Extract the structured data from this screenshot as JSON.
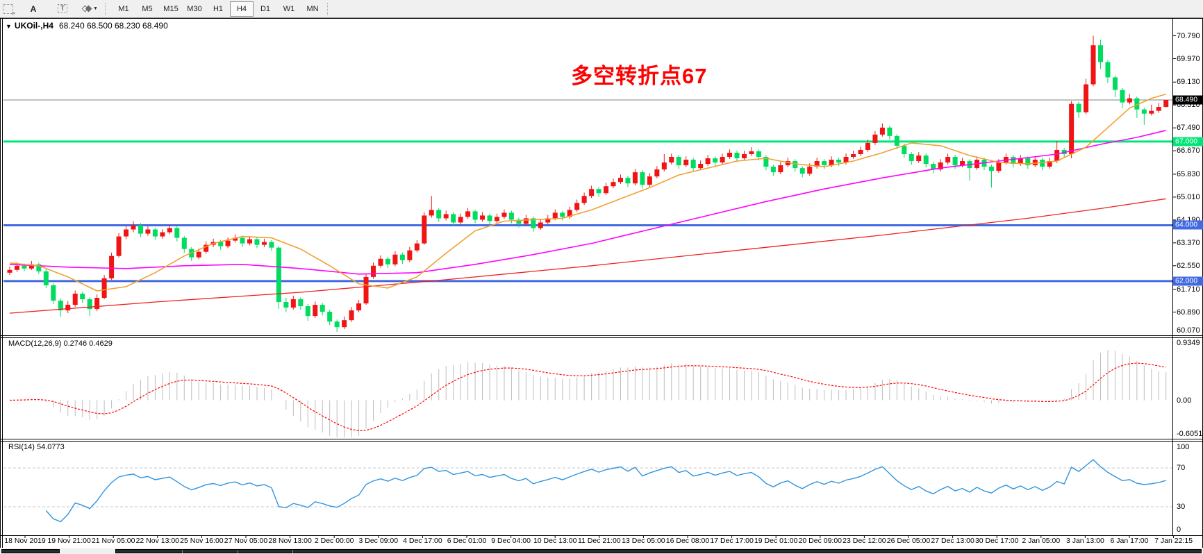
{
  "toolbar": {
    "frame_tool_label": "F",
    "tool_a": "A",
    "tool_t": "T",
    "timeframes": [
      "M1",
      "M5",
      "M15",
      "M30",
      "H1",
      "H4",
      "D1",
      "W1",
      "MN"
    ],
    "active_timeframe": "H4"
  },
  "chart": {
    "symbol_period": "UKOil-,H4",
    "ohlc_text": "68.240 68.500 68.230 68.490",
    "annotation": {
      "text": "多空转折点67",
      "color": "#ff0000"
    },
    "current_price": 68.49,
    "price_axis_ticks": [
      "70.790",
      "69.970",
      "69.130",
      "68.310",
      "67.490",
      "66.670",
      "65.830",
      "65.010",
      "64.190",
      "63.370",
      "62.550",
      "61.710",
      "60.890",
      "60.070"
    ],
    "badges": [
      {
        "text": "68.490",
        "price": 68.49,
        "bg": "#000000",
        "fg": "#ffffff"
      },
      {
        "text": "67.000",
        "price": 67.0,
        "bg": "#00e676",
        "fg": "#ffffff"
      },
      {
        "text": "64.000",
        "price": 64.0,
        "bg": "#4169e1",
        "fg": "#ffffff"
      },
      {
        "text": "62.000",
        "price": 62.0,
        "bg": "#4169e1",
        "fg": "#ffffff"
      }
    ],
    "level_lines": [
      {
        "price": 68.49,
        "color": "#808080",
        "width": 1
      },
      {
        "price": 67.0,
        "color": "#00e676",
        "width": 3
      },
      {
        "price": 64.0,
        "color": "#4169e1",
        "width": 3
      },
      {
        "price": 62.0,
        "color": "#4169e1",
        "width": 3
      }
    ]
  },
  "macd": {
    "label": "MACD(12,26,9)",
    "values": "0.2746 0.4629",
    "params": {
      "fast": 12,
      "slow": 26,
      "signal": 9
    },
    "axis_ticks": [
      "0.9349",
      "0.00",
      "-0.6051"
    ],
    "ylim": [
      -0.6051,
      0.9349
    ]
  },
  "rsi": {
    "label": "RSI(14)",
    "value": "54.0773",
    "period": 14,
    "axis_ticks": [
      "100",
      "70",
      "30",
      "0"
    ],
    "dashed_levels": [
      70,
      30
    ]
  },
  "time_axis": [
    "18 Nov 2019",
    "19 Nov 21:00",
    "21 Nov 05:00",
    "22 Nov 13:00",
    "25 Nov 16:00",
    "27 Nov 05:00",
    "28 Nov 13:00",
    "2 Dec 00:00",
    "3 Dec 09:00",
    "4 Dec 17:00",
    "6 Dec 01:00",
    "9 Dec 04:00",
    "10 Dec 13:00",
    "11 Dec 21:00",
    "13 Dec 05:00",
    "16 Dec 08:00",
    "17 Dec 17:00",
    "19 Dec 01:00",
    "20 Dec 09:00",
    "23 Dec 12:00",
    "26 Dec 05:00",
    "27 Dec 13:00",
    "30 Dec 17:00",
    "2 Jan 05:00",
    "3 Jan 13:00",
    "6 Jan 17:00",
    "7 Jan 22:15"
  ],
  "chart_data": {
    "type": "candlestick",
    "symbol": "UKOil-",
    "timeframe": "H4",
    "title": "UKOil-,H4 68.240 68.500 68.230 68.490",
    "ylim": [
      60.06,
      71.37
    ],
    "colors": {
      "up": "#f01414",
      "down": "#00dc5f",
      "ma_orange": "#f0a030",
      "ma_magenta": "#ff00ff",
      "ma_red": "#f02020",
      "macd_hist": "#bdbdbd",
      "macd_signal": "#ff0000",
      "rsi_line": "#2f94e0",
      "rsi_level": "#c8c8c8",
      "price_line": "#808080",
      "annotation": "#ff0000"
    },
    "candles": [
      [
        62.3,
        62.52,
        62.22,
        62.4
      ],
      [
        62.4,
        62.68,
        62.33,
        62.55
      ],
      [
        62.55,
        62.63,
        62.35,
        62.45
      ],
      [
        62.45,
        62.72,
        62.4,
        62.6
      ],
      [
        62.6,
        62.66,
        62.25,
        62.35
      ],
      [
        62.35,
        62.42,
        61.75,
        61.85
      ],
      [
        61.85,
        61.92,
        61.18,
        61.3
      ],
      [
        61.3,
        61.38,
        60.72,
        60.95
      ],
      [
        60.95,
        61.28,
        60.85,
        61.15
      ],
      [
        61.15,
        61.66,
        61.08,
        61.55
      ],
      [
        61.55,
        61.62,
        61.22,
        61.35
      ],
      [
        61.35,
        61.42,
        60.75,
        61.0
      ],
      [
        61.0,
        61.52,
        60.92,
        61.4
      ],
      [
        61.4,
        62.22,
        61.35,
        62.1
      ],
      [
        62.1,
        63.02,
        62.05,
        62.9
      ],
      [
        62.9,
        63.72,
        62.85,
        63.6
      ],
      [
        63.6,
        63.97,
        63.5,
        63.85
      ],
      [
        63.85,
        64.15,
        63.75,
        64.0
      ],
      [
        64.0,
        64.08,
        63.58,
        63.7
      ],
      [
        63.7,
        63.96,
        63.62,
        63.85
      ],
      [
        63.85,
        63.92,
        63.48,
        63.6
      ],
      [
        63.6,
        63.86,
        63.52,
        63.75
      ],
      [
        63.75,
        64.02,
        63.68,
        63.9
      ],
      [
        63.9,
        63.98,
        63.42,
        63.55
      ],
      [
        63.55,
        63.62,
        63.02,
        63.15
      ],
      [
        63.15,
        63.22,
        62.72,
        62.85
      ],
      [
        62.85,
        63.16,
        62.78,
        63.05
      ],
      [
        63.05,
        63.42,
        62.98,
        63.3
      ],
      [
        63.3,
        63.52,
        63.22,
        63.4
      ],
      [
        63.4,
        63.48,
        63.12,
        63.25
      ],
      [
        63.25,
        63.56,
        63.18,
        63.45
      ],
      [
        63.45,
        63.67,
        63.38,
        63.55
      ],
      [
        63.55,
        63.62,
        63.22,
        63.35
      ],
      [
        63.35,
        63.61,
        63.28,
        63.5
      ],
      [
        63.5,
        63.57,
        63.18,
        63.3
      ],
      [
        63.3,
        63.52,
        63.22,
        63.4
      ],
      [
        63.4,
        63.47,
        63.08,
        63.2
      ],
      [
        63.2,
        63.26,
        61.0,
        61.25
      ],
      [
        61.25,
        61.4,
        60.88,
        61.05
      ],
      [
        61.05,
        61.48,
        60.98,
        61.35
      ],
      [
        61.35,
        61.42,
        60.97,
        61.1
      ],
      [
        61.1,
        61.18,
        60.58,
        60.75
      ],
      [
        60.75,
        61.27,
        60.68,
        61.15
      ],
      [
        61.15,
        61.22,
        60.77,
        60.9
      ],
      [
        60.9,
        60.97,
        60.42,
        60.55
      ],
      [
        60.55,
        60.62,
        60.18,
        60.35
      ],
      [
        60.35,
        60.73,
        60.28,
        60.6
      ],
      [
        60.6,
        61.07,
        60.54,
        60.95
      ],
      [
        60.95,
        61.32,
        60.88,
        61.2
      ],
      [
        61.2,
        62.26,
        61.15,
        62.15
      ],
      [
        62.15,
        62.67,
        62.08,
        62.55
      ],
      [
        62.55,
        62.92,
        62.48,
        62.8
      ],
      [
        62.8,
        62.87,
        62.47,
        62.6
      ],
      [
        62.6,
        63.07,
        62.53,
        62.95
      ],
      [
        62.95,
        63.02,
        62.62,
        62.75
      ],
      [
        62.75,
        63.22,
        62.68,
        63.1
      ],
      [
        63.1,
        63.47,
        63.03,
        63.35
      ],
      [
        63.35,
        64.47,
        63.3,
        64.35
      ],
      [
        64.35,
        65.05,
        64.27,
        64.55
      ],
      [
        64.55,
        64.62,
        64.12,
        64.25
      ],
      [
        64.25,
        64.52,
        64.17,
        64.4
      ],
      [
        64.4,
        64.47,
        63.97,
        64.1
      ],
      [
        64.1,
        64.42,
        64.03,
        64.3
      ],
      [
        64.3,
        64.62,
        64.23,
        64.5
      ],
      [
        64.5,
        64.57,
        64.07,
        64.2
      ],
      [
        64.2,
        64.47,
        64.13,
        64.35
      ],
      [
        64.35,
        64.42,
        64.02,
        64.15
      ],
      [
        64.15,
        64.42,
        64.08,
        64.3
      ],
      [
        64.3,
        64.57,
        64.23,
        64.45
      ],
      [
        64.45,
        64.52,
        64.07,
        64.2
      ],
      [
        64.2,
        64.27,
        63.92,
        64.05
      ],
      [
        64.05,
        64.37,
        63.98,
        64.25
      ],
      [
        64.25,
        64.32,
        63.77,
        63.9
      ],
      [
        63.9,
        64.22,
        63.84,
        64.1
      ],
      [
        64.1,
        64.37,
        64.03,
        64.25
      ],
      [
        64.25,
        64.57,
        64.18,
        64.45
      ],
      [
        64.45,
        64.52,
        64.17,
        64.3
      ],
      [
        64.3,
        64.67,
        64.23,
        64.55
      ],
      [
        64.55,
        64.92,
        64.48,
        64.8
      ],
      [
        64.8,
        65.17,
        64.73,
        65.05
      ],
      [
        65.05,
        65.42,
        64.98,
        65.3
      ],
      [
        65.3,
        65.37,
        65.02,
        65.15
      ],
      [
        65.15,
        65.52,
        65.08,
        65.4
      ],
      [
        65.4,
        65.67,
        65.33,
        65.55
      ],
      [
        65.55,
        65.82,
        65.48,
        65.7
      ],
      [
        65.7,
        65.77,
        65.37,
        65.5
      ],
      [
        65.5,
        66.02,
        65.43,
        65.9
      ],
      [
        65.9,
        65.97,
        65.32,
        65.45
      ],
      [
        65.45,
        65.87,
        65.38,
        65.75
      ],
      [
        65.75,
        66.12,
        65.68,
        66.0
      ],
      [
        66.0,
        66.55,
        65.93,
        66.25
      ],
      [
        66.25,
        66.57,
        66.18,
        66.45
      ],
      [
        66.45,
        66.52,
        66.02,
        66.15
      ],
      [
        66.15,
        66.47,
        66.08,
        66.35
      ],
      [
        66.35,
        66.42,
        65.92,
        66.05
      ],
      [
        66.05,
        66.32,
        65.98,
        66.2
      ],
      [
        66.2,
        66.52,
        66.13,
        66.4
      ],
      [
        66.4,
        66.47,
        66.12,
        66.25
      ],
      [
        66.25,
        66.57,
        66.18,
        66.45
      ],
      [
        66.45,
        66.72,
        66.38,
        66.6
      ],
      [
        66.6,
        66.67,
        66.27,
        66.4
      ],
      [
        66.4,
        66.67,
        66.33,
        66.55
      ],
      [
        66.55,
        66.8,
        66.48,
        66.65
      ],
      [
        66.65,
        66.72,
        66.32,
        66.45
      ],
      [
        66.45,
        66.52,
        65.97,
        66.1
      ],
      [
        66.1,
        66.17,
        65.77,
        65.9
      ],
      [
        65.9,
        66.27,
        65.83,
        66.15
      ],
      [
        66.15,
        66.42,
        66.08,
        66.3
      ],
      [
        66.3,
        66.37,
        65.92,
        66.05
      ],
      [
        66.05,
        66.12,
        65.72,
        65.85
      ],
      [
        65.85,
        66.22,
        65.78,
        66.1
      ],
      [
        66.1,
        66.42,
        66.03,
        66.3
      ],
      [
        66.3,
        66.37,
        66.02,
        66.15
      ],
      [
        66.15,
        66.47,
        66.08,
        66.35
      ],
      [
        66.35,
        66.42,
        66.12,
        66.25
      ],
      [
        66.25,
        66.57,
        66.18,
        66.45
      ],
      [
        66.45,
        66.67,
        66.38,
        66.55
      ],
      [
        66.55,
        66.82,
        66.48,
        66.7
      ],
      [
        66.7,
        67.07,
        66.63,
        66.95
      ],
      [
        66.95,
        67.37,
        66.88,
        67.25
      ],
      [
        67.25,
        67.65,
        67.18,
        67.5
      ],
      [
        67.5,
        67.57,
        67.07,
        67.2
      ],
      [
        67.2,
        67.27,
        66.72,
        66.85
      ],
      [
        66.85,
        66.92,
        66.42,
        66.55
      ],
      [
        66.55,
        66.62,
        66.17,
        66.3
      ],
      [
        66.3,
        66.62,
        66.23,
        66.5
      ],
      [
        66.5,
        66.57,
        66.07,
        66.2
      ],
      [
        66.2,
        66.27,
        65.87,
        66.0
      ],
      [
        66.0,
        66.37,
        65.93,
        66.25
      ],
      [
        66.25,
        66.57,
        66.18,
        66.45
      ],
      [
        66.45,
        66.52,
        66.02,
        66.15
      ],
      [
        66.15,
        66.42,
        66.08,
        66.3
      ],
      [
        66.3,
        66.37,
        65.6,
        66.05
      ],
      [
        66.05,
        66.47,
        65.98,
        66.35
      ],
      [
        66.35,
        66.42,
        65.97,
        66.1
      ],
      [
        66.1,
        66.17,
        65.35,
        65.95
      ],
      [
        65.95,
        66.37,
        65.88,
        66.25
      ],
      [
        66.25,
        66.57,
        66.18,
        66.45
      ],
      [
        66.45,
        66.52,
        66.07,
        66.2
      ],
      [
        66.2,
        66.52,
        66.13,
        66.4
      ],
      [
        66.4,
        66.47,
        66.02,
        66.15
      ],
      [
        66.15,
        66.47,
        66.08,
        66.35
      ],
      [
        66.35,
        66.42,
        65.97,
        66.1
      ],
      [
        66.1,
        66.42,
        66.03,
        66.3
      ],
      [
        66.3,
        67.02,
        66.23,
        66.7
      ],
      [
        66.7,
        66.77,
        66.42,
        66.55
      ],
      [
        66.55,
        68.45,
        66.4,
        68.35
      ],
      [
        68.35,
        68.42,
        67.85,
        68.05
      ],
      [
        68.05,
        69.25,
        67.98,
        69.05
      ],
      [
        69.05,
        70.79,
        68.98,
        70.45
      ],
      [
        70.45,
        70.65,
        69.6,
        69.85
      ],
      [
        69.85,
        69.92,
        69.1,
        69.3
      ],
      [
        69.3,
        69.37,
        68.6,
        68.85
      ],
      [
        68.85,
        68.92,
        68.2,
        68.4
      ],
      [
        68.4,
        68.7,
        68.33,
        68.55
      ],
      [
        68.55,
        68.62,
        67.85,
        68.15
      ],
      [
        68.15,
        68.22,
        67.6,
        68.0
      ],
      [
        68.0,
        68.32,
        67.93,
        68.1
      ],
      [
        68.1,
        68.38,
        68.03,
        68.24
      ],
      [
        68.24,
        68.5,
        68.23,
        68.49
      ]
    ],
    "ma_orange_points": [
      [
        0,
        62.65
      ],
      [
        4,
        62.55
      ],
      [
        8,
        62.15
      ],
      [
        12,
        61.65
      ],
      [
        16,
        61.8
      ],
      [
        20,
        62.3
      ],
      [
        24,
        62.9
      ],
      [
        28,
        63.35
      ],
      [
        32,
        63.6
      ],
      [
        36,
        63.55
      ],
      [
        40,
        63.15
      ],
      [
        44,
        62.55
      ],
      [
        48,
        61.9
      ],
      [
        52,
        61.75
      ],
      [
        56,
        62.15
      ],
      [
        60,
        63.0
      ],
      [
        64,
        63.8
      ],
      [
        68,
        64.15
      ],
      [
        72,
        64.2
      ],
      [
        76,
        64.25
      ],
      [
        80,
        64.55
      ],
      [
        84,
        64.95
      ],
      [
        88,
        65.35
      ],
      [
        92,
        65.8
      ],
      [
        96,
        66.05
      ],
      [
        100,
        66.3
      ],
      [
        104,
        66.4
      ],
      [
        108,
        66.2
      ],
      [
        112,
        66.1
      ],
      [
        116,
        66.3
      ],
      [
        120,
        66.6
      ],
      [
        124,
        66.95
      ],
      [
        128,
        66.85
      ],
      [
        132,
        66.5
      ],
      [
        136,
        66.25
      ],
      [
        140,
        66.2
      ],
      [
        144,
        66.3
      ],
      [
        148,
        66.8
      ],
      [
        151,
        67.5
      ],
      [
        154,
        68.2
      ],
      [
        157,
        68.55
      ],
      [
        159,
        68.7
      ]
    ],
    "ma_magenta_points": [
      [
        0,
        62.6
      ],
      [
        8,
        62.5
      ],
      [
        16,
        62.45
      ],
      [
        24,
        62.55
      ],
      [
        32,
        62.6
      ],
      [
        40,
        62.45
      ],
      [
        48,
        62.25
      ],
      [
        56,
        62.3
      ],
      [
        64,
        62.6
      ],
      [
        72,
        62.95
      ],
      [
        80,
        63.35
      ],
      [
        88,
        63.85
      ],
      [
        96,
        64.35
      ],
      [
        104,
        64.85
      ],
      [
        112,
        65.3
      ],
      [
        120,
        65.7
      ],
      [
        128,
        66.05
      ],
      [
        136,
        66.3
      ],
      [
        144,
        66.55
      ],
      [
        150,
        66.9
      ],
      [
        155,
        67.15
      ],
      [
        159,
        67.4
      ]
    ],
    "ma_red_points": [
      [
        0,
        60.85
      ],
      [
        20,
        61.25
      ],
      [
        40,
        61.6
      ],
      [
        60,
        62.05
      ],
      [
        80,
        62.55
      ],
      [
        100,
        63.1
      ],
      [
        120,
        63.65
      ],
      [
        140,
        64.25
      ],
      [
        150,
        64.6
      ],
      [
        159,
        64.95
      ]
    ]
  }
}
